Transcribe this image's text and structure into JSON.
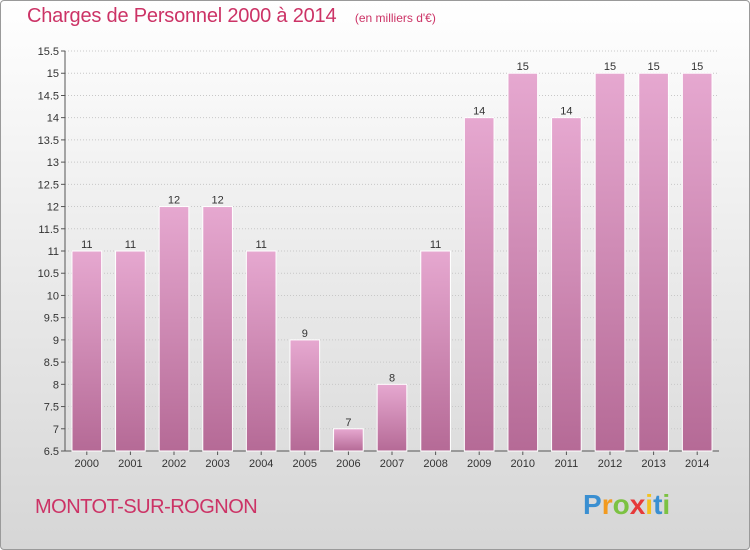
{
  "chart_data": {
    "type": "bar",
    "title": "Charges de Personnel 2000 à 2014",
    "subtitle": "(en milliers d'€)",
    "xlabel": "",
    "ylabel": "",
    "categories": [
      "2000",
      "2001",
      "2002",
      "2003",
      "2004",
      "2005",
      "2006",
      "2007",
      "2008",
      "2009",
      "2010",
      "2011",
      "2012",
      "2013",
      "2014"
    ],
    "values": [
      11,
      11,
      12,
      12,
      11,
      9,
      7,
      8,
      11,
      14,
      15,
      14,
      15,
      15,
      15
    ],
    "data_labels": [
      "11",
      "11",
      "12",
      "12",
      "11",
      "9",
      "7",
      "8",
      "11",
      "14",
      "15",
      "14",
      "15",
      "15",
      "15"
    ],
    "ylim": [
      6.5,
      15.5
    ],
    "yticks": [
      "6.5",
      "7",
      "7.5",
      "8",
      "8.5",
      "9",
      "9.5",
      "10",
      "10.5",
      "11",
      "11.5",
      "12",
      "12.5",
      "13",
      "13.5",
      "14",
      "14.5",
      "15",
      "15.5"
    ],
    "grid": true,
    "legend": "none",
    "bar_color": "#d98fbd"
  },
  "footer": {
    "place": "MONTOT-SUR-ROGNON",
    "logo_letters": [
      {
        "ch": "P",
        "color": "#3a8fd1"
      },
      {
        "ch": "r",
        "color": "#f29a1f"
      },
      {
        "ch": "o",
        "color": "#7cc242"
      },
      {
        "ch": "x",
        "color": "#e63a3a"
      },
      {
        "ch": "i",
        "color": "#f2c21f"
      },
      {
        "ch": "t",
        "color": "#3a8fd1"
      },
      {
        "ch": "i",
        "color": "#7cc242"
      }
    ]
  },
  "colors": {
    "accent": "#cc3366",
    "grid": "#c8c8c8",
    "axis_text": "#333333"
  }
}
